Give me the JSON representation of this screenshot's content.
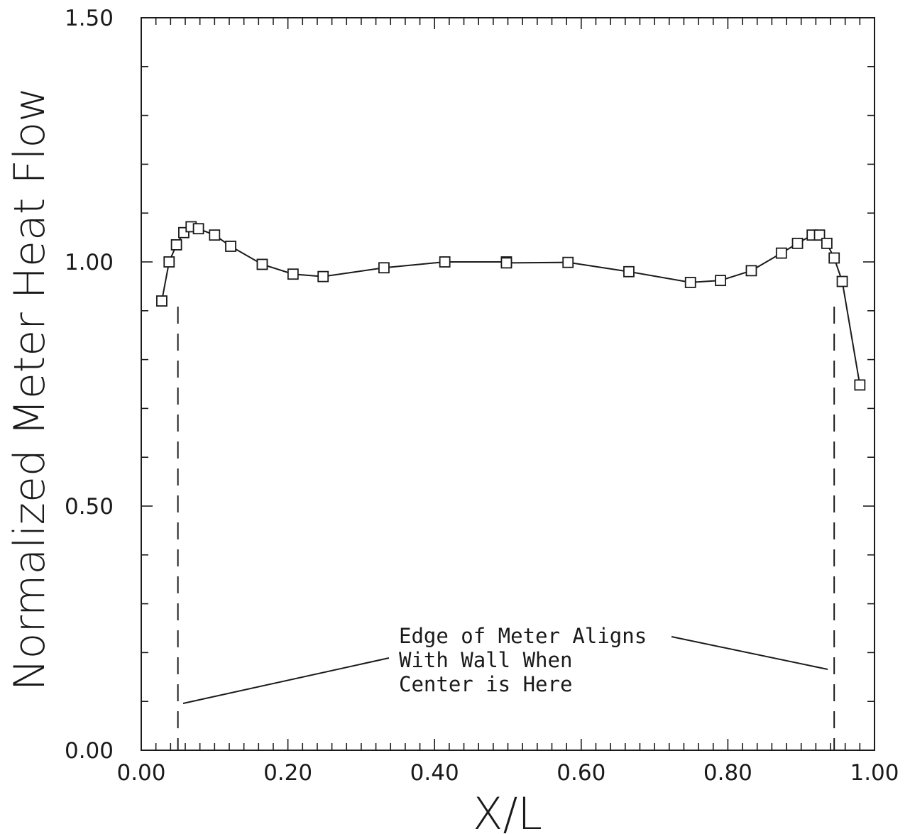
{
  "chart_data": {
    "type": "line",
    "title": "",
    "xlabel": "X/L",
    "ylabel": "Normalized Meter Heat Flow",
    "xlim": [
      0.0,
      1.0
    ],
    "ylim": [
      0.0,
      1.5
    ],
    "x_tick_labels": [
      "0.00",
      "0.20",
      "0.40",
      "0.60",
      "0.80",
      "1.00"
    ],
    "y_tick_labels": [
      "0.00",
      "0.50",
      "1.00",
      "1.50"
    ],
    "series": [
      {
        "marker": "open-square",
        "x": [
          0.028,
          0.038,
          0.048,
          0.058,
          0.068,
          0.078,
          0.1,
          0.122,
          0.165,
          0.207,
          0.248,
          0.331,
          0.414,
          0.498,
          0.498,
          0.582,
          0.665,
          0.749,
          0.79,
          0.832,
          0.873,
          0.895,
          0.915,
          0.925,
          0.935,
          0.945,
          0.956,
          0.98
        ],
        "y": [
          0.92,
          1.0,
          1.035,
          1.06,
          1.072,
          1.068,
          1.055,
          1.032,
          0.995,
          0.975,
          0.97,
          0.988,
          1.0,
          1.0,
          0.998,
          0.999,
          0.98,
          0.958,
          0.962,
          0.982,
          1.018,
          1.038,
          1.055,
          1.055,
          1.038,
          1.008,
          0.96,
          0.748
        ]
      }
    ],
    "reference_lines_x": [
      0.05,
      0.945
    ],
    "annotation": {
      "lines": [
        "Edge of Meter Aligns",
        "With Wall When",
        "Center is Here"
      ]
    },
    "grid": false
  }
}
